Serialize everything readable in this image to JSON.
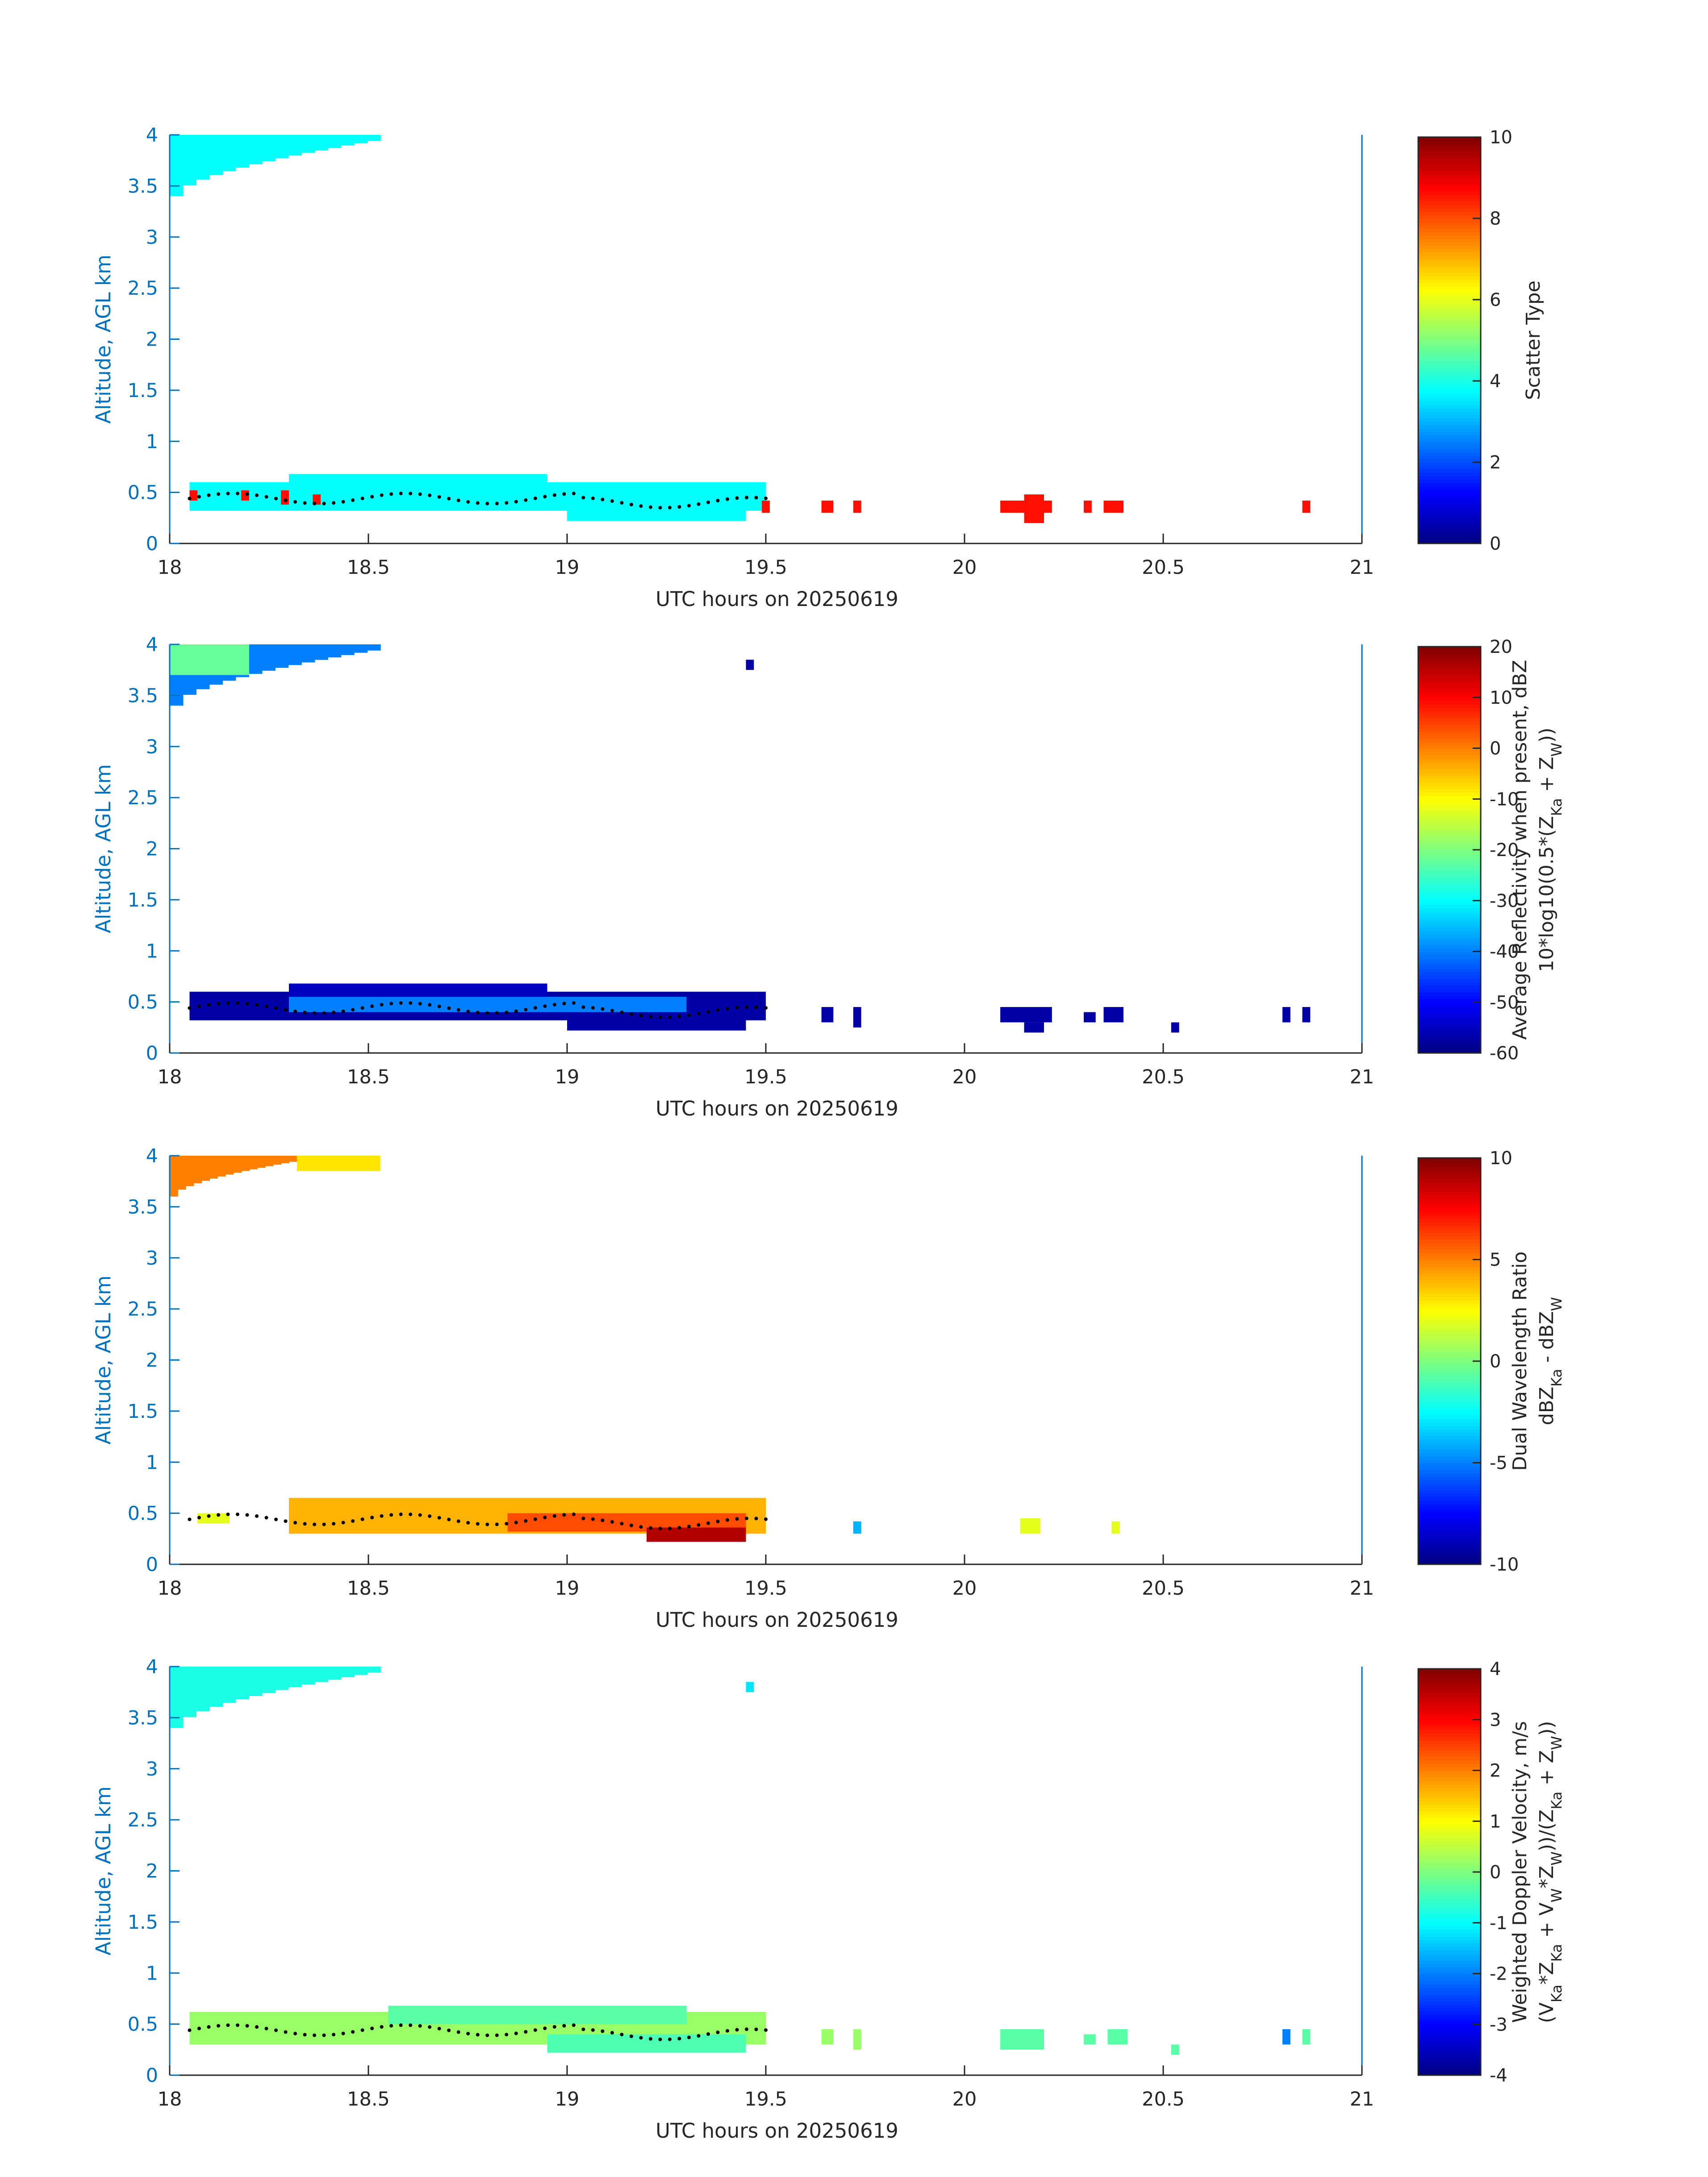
{
  "figure": {
    "panels": [
      {
        "id": "scatter-type",
        "ylabel": "Altitude, AGL km",
        "xlabel": "UTC hours on 20250619",
        "xticks": [
          "18",
          "18.5",
          "19",
          "19.5",
          "20",
          "20.5",
          "21"
        ],
        "yticks": [
          "0",
          "0.5",
          "1",
          "1.5",
          "2",
          "2.5",
          "3",
          "3.5",
          "4"
        ],
        "colorbar": {
          "label_lines": [
            {
              "text": "Scatter Type"
            }
          ],
          "ticks": [
            "0",
            "2",
            "4",
            "6",
            "8",
            "10"
          ],
          "range": [
            0,
            10
          ]
        }
      },
      {
        "id": "average-reflectivity",
        "ylabel": "Altitude, AGL km",
        "xlabel": "UTC hours on 20250619",
        "xticks": [
          "18",
          "18.5",
          "19",
          "19.5",
          "20",
          "20.5",
          "21"
        ],
        "yticks": [
          "0",
          "0.5",
          "1",
          "1.5",
          "2",
          "2.5",
          "3",
          "3.5",
          "4"
        ],
        "colorbar": {
          "label_lines": [
            {
              "text": "Average Reflectivity when present, dBZ"
            },
            {
              "text": "10*log10(0.5*(Z",
              "sub1": "Ka",
              "mid": " + Z",
              "sub2": "W",
              "tail": "))"
            }
          ],
          "ticks": [
            "-60",
            "-50",
            "-40",
            "-30",
            "-20",
            "-10",
            "0",
            "10",
            "20"
          ],
          "range": [
            -60,
            20
          ]
        }
      },
      {
        "id": "dual-wavelength-ratio",
        "ylabel": "Altitude, AGL km",
        "xlabel": "UTC hours on 20250619",
        "xticks": [
          "18",
          "18.5",
          "19",
          "19.5",
          "20",
          "20.5",
          "21"
        ],
        "yticks": [
          "0",
          "0.5",
          "1",
          "1.5",
          "2",
          "2.5",
          "3",
          "3.5",
          "4"
        ],
        "colorbar": {
          "label_lines": [
            {
              "text": "Dual Wavelength Ratio"
            },
            {
              "text": "dBZ",
              "sub1": "Ka",
              "mid": " - dBZ",
              "sub2": "W",
              "tail": ""
            }
          ],
          "ticks": [
            "-10",
            "-5",
            "0",
            "5",
            "10"
          ],
          "range": [
            -10,
            10
          ]
        }
      },
      {
        "id": "weighted-doppler-velocity",
        "ylabel": "Altitude, AGL km",
        "xlabel": "UTC hours on 20250619",
        "xticks": [
          "18",
          "18.5",
          "19",
          "19.5",
          "20",
          "20.5",
          "21"
        ],
        "yticks": [
          "0",
          "0.5",
          "1",
          "1.5",
          "2",
          "2.5",
          "3",
          "3.5",
          "4"
        ],
        "colorbar": {
          "label_lines": [
            {
              "text": "Weighted Doppler Velocity, m/s"
            },
            {
              "text": "(V",
              "sub1": "Ka",
              "mid": "*Z",
              "sub2": "Ka",
              "tail": " + V",
              "sub3": "W",
              "tail2": "*Z",
              "sub4": "W",
              "tail3": "))/(Z",
              "sub5": "Ka",
              "tail4": " + Z",
              "sub6": "W",
              "tail5": "))"
            }
          ],
          "ticks": [
            "-4",
            "-3",
            "-2",
            "-1",
            "0",
            "1",
            "2",
            "3",
            "4"
          ],
          "range": [
            -4,
            4
          ]
        }
      }
    ]
  },
  "chart_data": [
    {
      "type": "heatmap",
      "xlabel": "UTC hours on 20250619",
      "ylabel": "Altitude, AGL km",
      "colorbar_label": "Scatter Type",
      "xlim": [
        18,
        21
      ],
      "ylim": [
        0,
        4
      ],
      "clim": [
        0,
        10
      ],
      "colormap": "jet",
      "cells": [
        {
          "x0": 18.0,
          "x1": 18.53,
          "y0": 3.4,
          "y1": 4.0,
          "v": 3.8,
          "edge": "ragged-top-left"
        },
        {
          "x0": 18.05,
          "x1": 19.5,
          "y0": 0.32,
          "y1": 0.6,
          "v": 3.8
        },
        {
          "x0": 18.3,
          "x1": 18.95,
          "y0": 0.34,
          "y1": 0.68,
          "v": 3.8
        },
        {
          "x0": 19.0,
          "x1": 19.45,
          "y0": 0.22,
          "y1": 0.42,
          "v": 3.8
        },
        {
          "x0": 18.05,
          "x1": 18.07,
          "y0": 0.42,
          "y1": 0.52,
          "v": 8.6
        },
        {
          "x0": 18.18,
          "x1": 18.2,
          "y0": 0.42,
          "y1": 0.52,
          "v": 8.6
        },
        {
          "x0": 18.28,
          "x1": 18.3,
          "y0": 0.38,
          "y1": 0.52,
          "v": 8.6
        },
        {
          "x0": 18.36,
          "x1": 18.38,
          "y0": 0.38,
          "y1": 0.48,
          "v": 8.6
        },
        {
          "x0": 19.49,
          "x1": 19.51,
          "y0": 0.3,
          "y1": 0.42,
          "v": 8.6
        },
        {
          "x0": 19.64,
          "x1": 19.67,
          "y0": 0.3,
          "y1": 0.42,
          "v": 8.6
        },
        {
          "x0": 19.72,
          "x1": 19.74,
          "y0": 0.3,
          "y1": 0.42,
          "v": 8.6
        },
        {
          "x0": 20.09,
          "x1": 20.22,
          "y0": 0.3,
          "y1": 0.42,
          "v": 8.6
        },
        {
          "x0": 20.15,
          "x1": 20.2,
          "y0": 0.2,
          "y1": 0.48,
          "v": 8.6
        },
        {
          "x0": 20.3,
          "x1": 20.32,
          "y0": 0.3,
          "y1": 0.42,
          "v": 8.6
        },
        {
          "x0": 20.35,
          "x1": 20.4,
          "y0": 0.3,
          "y1": 0.42,
          "v": 8.6
        },
        {
          "x0": 20.85,
          "x1": 20.87,
          "y0": 0.3,
          "y1": 0.42,
          "v": 8.6
        }
      ],
      "cloud_base_trace": {
        "x0": 18.05,
        "x1": 19.5,
        "y": 0.44
      }
    },
    {
      "type": "heatmap",
      "xlabel": "UTC hours on 20250619",
      "ylabel": "Altitude, AGL km",
      "colorbar_label": "Average Reflectivity when present, dBZ",
      "xlim": [
        18,
        21
      ],
      "ylim": [
        0,
        4
      ],
      "clim": [
        -60,
        20
      ],
      "colormap": "jet",
      "cells": [
        {
          "x0": 18.0,
          "x1": 18.53,
          "y0": 3.4,
          "y1": 4.0,
          "v": -40,
          "edge": "ragged-top-left"
        },
        {
          "x0": 18.0,
          "x1": 18.2,
          "y0": 3.7,
          "y1": 4.0,
          "v": -22
        },
        {
          "x0": 18.05,
          "x1": 19.5,
          "y0": 0.32,
          "y1": 0.6,
          "v": -57
        },
        {
          "x0": 18.3,
          "x1": 19.3,
          "y0": 0.4,
          "y1": 0.55,
          "v": -40
        },
        {
          "x0": 18.3,
          "x1": 18.95,
          "y0": 0.55,
          "y1": 0.68,
          "v": -55
        },
        {
          "x0": 19.0,
          "x1": 19.45,
          "y0": 0.22,
          "y1": 0.4,
          "v": -57
        },
        {
          "x0": 19.45,
          "x1": 19.47,
          "y0": 3.75,
          "y1": 3.85,
          "v": -57
        },
        {
          "x0": 19.64,
          "x1": 19.67,
          "y0": 0.3,
          "y1": 0.45,
          "v": -57
        },
        {
          "x0": 19.72,
          "x1": 19.74,
          "y0": 0.25,
          "y1": 0.45,
          "v": -57
        },
        {
          "x0": 20.09,
          "x1": 20.22,
          "y0": 0.3,
          "y1": 0.45,
          "v": -57
        },
        {
          "x0": 20.15,
          "x1": 20.2,
          "y0": 0.2,
          "y1": 0.3,
          "v": -57
        },
        {
          "x0": 20.3,
          "x1": 20.33,
          "y0": 0.3,
          "y1": 0.4,
          "v": -57
        },
        {
          "x0": 20.35,
          "x1": 20.4,
          "y0": 0.3,
          "y1": 0.45,
          "v": -57
        },
        {
          "x0": 20.52,
          "x1": 20.54,
          "y0": 0.2,
          "y1": 0.3,
          "v": -57
        },
        {
          "x0": 20.8,
          "x1": 20.82,
          "y0": 0.3,
          "y1": 0.45,
          "v": -57
        },
        {
          "x0": 20.85,
          "x1": 20.87,
          "y0": 0.3,
          "y1": 0.45,
          "v": -57
        }
      ],
      "cloud_base_trace": {
        "x0": 18.05,
        "x1": 19.5,
        "y": 0.44
      }
    },
    {
      "type": "heatmap",
      "xlabel": "UTC hours on 20250619",
      "ylabel": "Altitude, AGL km",
      "colorbar_label": "Dual Wavelength Ratio",
      "xlim": [
        18,
        21
      ],
      "ylim": [
        0,
        4
      ],
      "clim": [
        -10,
        10
      ],
      "colormap": "jet",
      "cells": [
        {
          "x0": 18.0,
          "x1": 18.32,
          "y0": 3.6,
          "y1": 4.0,
          "v": 5,
          "edge": "ragged-top-left"
        },
        {
          "x0": 18.32,
          "x1": 18.53,
          "y0": 3.85,
          "y1": 4.0,
          "v": 3
        },
        {
          "x0": 18.3,
          "x1": 19.5,
          "y0": 0.3,
          "y1": 0.65,
          "v": 4
        },
        {
          "x0": 18.85,
          "x1": 19.45,
          "y0": 0.32,
          "y1": 0.5,
          "v": 6
        },
        {
          "x0": 19.2,
          "x1": 19.45,
          "y0": 0.22,
          "y1": 0.36,
          "v": 9
        },
        {
          "x0": 18.07,
          "x1": 18.15,
          "y0": 0.4,
          "y1": 0.5,
          "v": 2
        },
        {
          "x0": 19.72,
          "x1": 19.74,
          "y0": 0.3,
          "y1": 0.42,
          "v": -4
        },
        {
          "x0": 20.14,
          "x1": 20.19,
          "y0": 0.3,
          "y1": 0.45,
          "v": 2
        },
        {
          "x0": 20.37,
          "x1": 20.39,
          "y0": 0.3,
          "y1": 0.42,
          "v": 2
        }
      ],
      "cloud_base_trace": {
        "x0": 18.05,
        "x1": 19.5,
        "y": 0.44
      }
    },
    {
      "type": "heatmap",
      "xlabel": "UTC hours on 20250619",
      "ylabel": "Altitude, AGL km",
      "colorbar_label": "Weighted Doppler Velocity, m/s",
      "xlim": [
        18,
        21
      ],
      "ylim": [
        0,
        4
      ],
      "clim": [
        -4,
        4
      ],
      "colormap": "jet",
      "cells": [
        {
          "x0": 18.0,
          "x1": 18.53,
          "y0": 3.4,
          "y1": 4.0,
          "v": -0.8,
          "edge": "ragged-top-left"
        },
        {
          "x0": 18.05,
          "x1": 19.5,
          "y0": 0.3,
          "y1": 0.62,
          "v": 0.2
        },
        {
          "x0": 18.55,
          "x1": 19.3,
          "y0": 0.5,
          "y1": 0.68,
          "v": -0.3
        },
        {
          "x0": 18.95,
          "x1": 19.45,
          "y0": 0.22,
          "y1": 0.4,
          "v": -0.4
        },
        {
          "x0": 19.45,
          "x1": 19.47,
          "y0": 3.75,
          "y1": 3.85,
          "v": -1.2
        },
        {
          "x0": 19.64,
          "x1": 19.67,
          "y0": 0.3,
          "y1": 0.45,
          "v": 0.2
        },
        {
          "x0": 19.72,
          "x1": 19.74,
          "y0": 0.25,
          "y1": 0.45,
          "v": 0.2
        },
        {
          "x0": 20.09,
          "x1": 20.2,
          "y0": 0.25,
          "y1": 0.45,
          "v": -0.3
        },
        {
          "x0": 20.3,
          "x1": 20.33,
          "y0": 0.3,
          "y1": 0.4,
          "v": -0.3
        },
        {
          "x0": 20.36,
          "x1": 20.41,
          "y0": 0.3,
          "y1": 0.45,
          "v": -0.3
        },
        {
          "x0": 20.52,
          "x1": 20.54,
          "y0": 0.2,
          "y1": 0.3,
          "v": -0.3
        },
        {
          "x0": 20.8,
          "x1": 20.82,
          "y0": 0.3,
          "y1": 0.45,
          "v": -2
        },
        {
          "x0": 20.85,
          "x1": 20.87,
          "y0": 0.3,
          "y1": 0.45,
          "v": -0.3
        }
      ],
      "cloud_base_trace": {
        "x0": 18.05,
        "x1": 19.5,
        "y": 0.44
      }
    }
  ]
}
